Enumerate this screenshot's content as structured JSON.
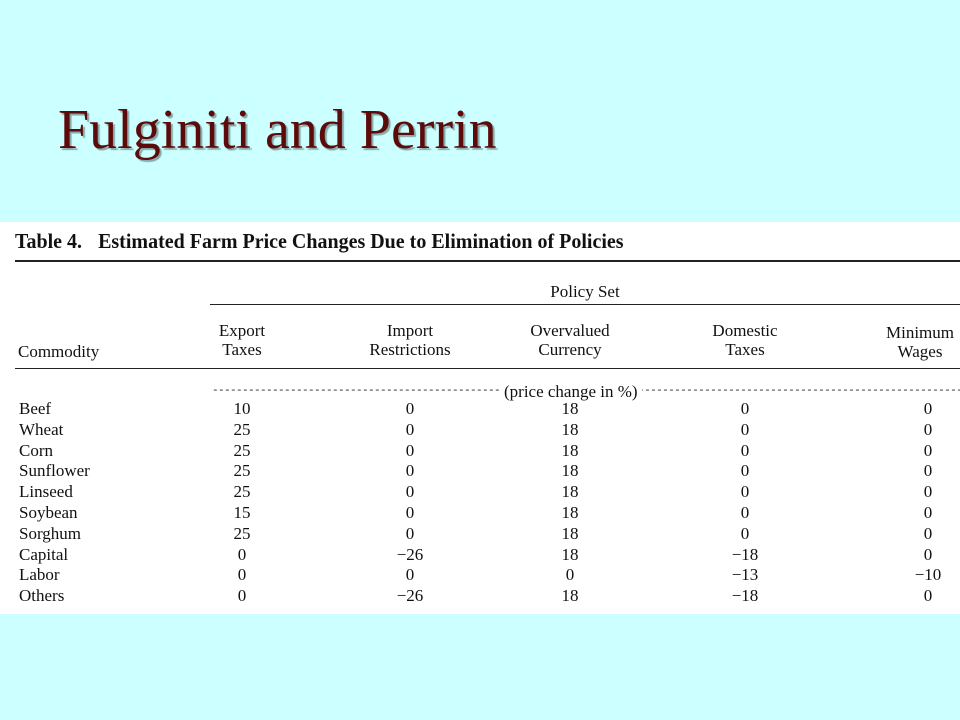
{
  "slide": {
    "title": "Fulginiti and Perrin"
  },
  "table": {
    "number": "Table 4.",
    "caption": "Estimated Farm Price Changes Due to Elimination of Policies",
    "group_header": "Policy Set",
    "stub_header": "Commodity",
    "columns": [
      {
        "line1": "Export",
        "line2": "Taxes"
      },
      {
        "line1": "Import",
        "line2": "Restrictions"
      },
      {
        "line1": "Overvalued",
        "line2": "Currency"
      },
      {
        "line1": "Domestic",
        "line2": "Taxes"
      },
      {
        "line1": "Minimum",
        "line2": "Wages"
      }
    ],
    "units": "(price change in %)",
    "rows": [
      {
        "name": "Beef",
        "values": [
          "10",
          "0",
          "18",
          "0",
          "0"
        ]
      },
      {
        "name": "Wheat",
        "values": [
          "25",
          "0",
          "18",
          "0",
          "0"
        ]
      },
      {
        "name": "Corn",
        "values": [
          "25",
          "0",
          "18",
          "0",
          "0"
        ]
      },
      {
        "name": "Sunflower",
        "values": [
          "25",
          "0",
          "18",
          "0",
          "0"
        ]
      },
      {
        "name": "Linseed",
        "values": [
          "25",
          "0",
          "18",
          "0",
          "0"
        ]
      },
      {
        "name": "Soybean",
        "values": [
          "15",
          "0",
          "18",
          "0",
          "0"
        ]
      },
      {
        "name": "Sorghum",
        "values": [
          "25",
          "0",
          "18",
          "0",
          "0"
        ]
      },
      {
        "name": "Capital",
        "values": [
          "0",
          "−26",
          "18",
          "−18",
          "0"
        ]
      },
      {
        "name": "Labor",
        "values": [
          "0",
          "0",
          "0",
          "−13",
          "−10"
        ]
      },
      {
        "name": "Others",
        "values": [
          "0",
          "−26",
          "18",
          "−18",
          "0"
        ]
      }
    ]
  },
  "colors": {
    "background": "#ccffff",
    "title": "#5c0a0a",
    "table_bg": "#ffffff"
  }
}
